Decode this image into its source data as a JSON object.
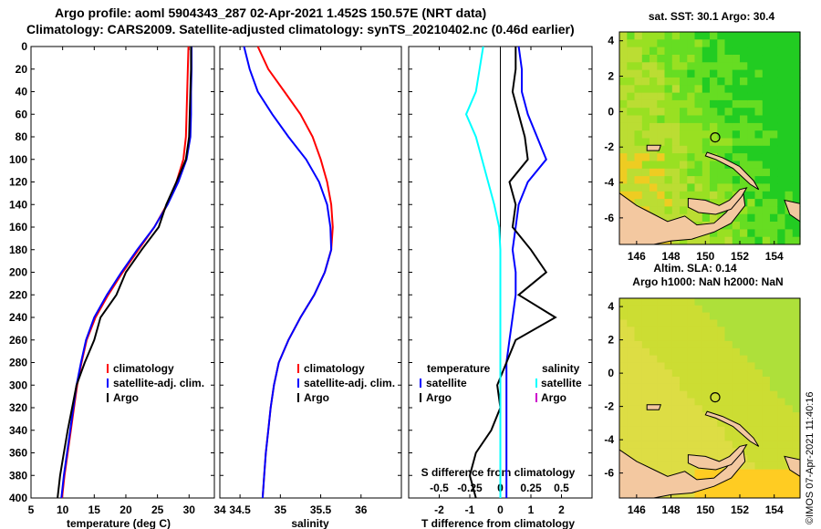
{
  "titles": {
    "line1": "Argo profile: aoml 5904343_287 02-Apr-2021 1.452S 150.57E (NRT data)",
    "line2": "Climatology: CARS2009. Satellite-adjusted climatology: synTS_20210402.nc (0.46d earlier)"
  },
  "colors": {
    "climatology": "#ff0000",
    "satellite": "#0000ff",
    "argo": "#000000",
    "sat_salinity": "#00ffff",
    "argo_salinity": "#cc00cc"
  },
  "chart_data": [
    {
      "name": "temperature-panel",
      "type": "line",
      "xlabel": "temperature (deg C)",
      "ylabel": "",
      "xlim": [
        5,
        34
      ],
      "ylim": [
        400,
        0
      ],
      "xticks": [
        "5",
        "10",
        "15",
        "20",
        "25",
        "30"
      ],
      "yticks": [
        "0",
        "20",
        "40",
        "60",
        "80",
        "100",
        "120",
        "140",
        "160",
        "180",
        "200",
        "220",
        "240",
        "260",
        "280",
        "300",
        "320",
        "340",
        "360",
        "380",
        "400"
      ],
      "legend": [
        "climatology",
        "satellite-adj. clim.",
        "Argo"
      ],
      "series": [
        {
          "name": "climatology",
          "color": "#ff0000",
          "depth": [
            0,
            20,
            40,
            60,
            80,
            100,
            120,
            140,
            160,
            180,
            200,
            220,
            240,
            260,
            280,
            300,
            320,
            340,
            360,
            380,
            400
          ],
          "values": [
            29.9,
            29.8,
            29.7,
            29.6,
            29.5,
            29.1,
            28.0,
            26.5,
            24.5,
            22.0,
            19.5,
            17.2,
            15.2,
            13.8,
            13.0,
            12.3,
            11.8,
            11.3,
            10.8,
            10.3,
            9.9
          ]
        },
        {
          "name": "satellite-adj. clim.",
          "color": "#0000ff",
          "depth": [
            0,
            20,
            40,
            60,
            80,
            100,
            120,
            140,
            160,
            180,
            200,
            220,
            240,
            260,
            280,
            300,
            320,
            340,
            360,
            380,
            400
          ],
          "values": [
            30.4,
            30.4,
            30.3,
            30.3,
            30.2,
            29.6,
            28.3,
            26.6,
            24.5,
            21.8,
            19.3,
            17.0,
            15.0,
            13.7,
            12.9,
            12.2,
            11.7,
            11.2,
            10.7,
            10.2,
            9.8
          ]
        },
        {
          "name": "Argo",
          "color": "#000000",
          "depth": [
            0,
            20,
            40,
            60,
            80,
            100,
            120,
            140,
            160,
            180,
            200,
            220,
            240,
            260,
            280,
            300,
            320,
            340,
            360,
            380,
            400
          ],
          "values": [
            30.3,
            30.3,
            30.2,
            30.1,
            30.0,
            29.5,
            28.0,
            26.4,
            25.2,
            22.5,
            20.0,
            18.5,
            16.0,
            15.0,
            13.5,
            12.2,
            11.5,
            10.8,
            10.2,
            9.6,
            9.2
          ]
        }
      ]
    },
    {
      "name": "salinity-panel",
      "type": "line",
      "xlabel": "salinity",
      "xlim": [
        34.25,
        36.5
      ],
      "ylim": [
        400,
        0
      ],
      "xticks": [
        "34.5",
        "35",
        "35.5",
        "36"
      ],
      "legend": [
        "climatology",
        "satellite-adj. clim.",
        "Argo"
      ],
      "series": [
        {
          "name": "climatology",
          "color": "#ff0000",
          "depth": [
            0,
            20,
            40,
            60,
            80,
            100,
            120,
            140,
            160,
            180,
            200,
            220,
            240,
            260,
            280,
            300,
            320,
            340,
            360,
            380,
            400
          ],
          "values": [
            34.72,
            34.85,
            35.05,
            35.25,
            35.4,
            35.5,
            35.58,
            35.63,
            35.65,
            35.63,
            35.55,
            35.42,
            35.25,
            35.1,
            34.98,
            34.92,
            34.88,
            34.85,
            34.82,
            34.8,
            34.78
          ]
        },
        {
          "name": "satellite-adj. clim.",
          "color": "#0000ff",
          "depth": [
            0,
            20,
            40,
            60,
            80,
            100,
            120,
            140,
            160,
            180,
            200,
            220,
            240,
            260,
            280,
            300,
            320,
            340,
            360,
            380,
            400
          ],
          "values": [
            34.55,
            34.62,
            34.72,
            34.9,
            35.1,
            35.32,
            35.48,
            35.58,
            35.62,
            35.63,
            35.55,
            35.42,
            35.25,
            35.1,
            34.98,
            34.92,
            34.88,
            34.85,
            34.82,
            34.8,
            34.78
          ]
        }
      ]
    },
    {
      "name": "difference-panel",
      "type": "line",
      "xlabel": "T difference from climatology",
      "xlim": [
        -3,
        3
      ],
      "ylim": [
        400,
        0
      ],
      "xticks": [
        "-2",
        "-1",
        "0",
        "1",
        "2"
      ],
      "top_axis_label": "S difference from climatology",
      "top_axis_ticks": [
        "-0.5",
        "-0.25",
        "0",
        "0.25",
        "0.5"
      ],
      "legend": {
        "temperature_header": "temperature",
        "salinity_header": "salinity",
        "temperature_items": [
          "satellite",
          "Argo"
        ],
        "salinity_items": [
          "satellite",
          "Argo"
        ]
      },
      "series": [
        {
          "name": "T satellite",
          "color": "#0000ff",
          "depth": [
            0,
            20,
            40,
            60,
            80,
            100,
            120,
            140,
            160,
            180,
            200,
            220,
            240,
            260,
            280,
            300,
            320,
            340,
            360,
            380,
            400
          ],
          "values": [
            0.6,
            0.7,
            0.7,
            0.9,
            1.2,
            1.5,
            0.9,
            0.6,
            0.5,
            0.4,
            0.5,
            0.5,
            0.4,
            0.3,
            0.2,
            0.2,
            0.2,
            0.2,
            0.2,
            0.2,
            0.2
          ]
        },
        {
          "name": "T Argo",
          "color": "#000000",
          "depth": [
            0,
            20,
            40,
            60,
            80,
            100,
            120,
            140,
            160,
            180,
            200,
            220,
            240,
            260,
            280,
            300,
            320,
            340,
            360,
            380,
            400
          ],
          "values": [
            0.5,
            0.5,
            0.4,
            0.6,
            0.8,
            0.9,
            0.3,
            0.5,
            0.4,
            1.0,
            1.5,
            0.6,
            1.8,
            0.5,
            0.2,
            -0.1,
            0.0,
            -0.3,
            -0.8,
            -1.0,
            -0.8
          ]
        },
        {
          "name": "S satellite",
          "color": "#00ffff",
          "depth": [
            0,
            20,
            40,
            60,
            80,
            100,
            120,
            140,
            160,
            180,
            200,
            220,
            240,
            260,
            280,
            300,
            320,
            340,
            360,
            380,
            400
          ],
          "values": [
            -0.14,
            -0.17,
            -0.2,
            -0.28,
            -0.2,
            -0.15,
            -0.1,
            -0.05,
            -0.01,
            0.0,
            0.0,
            0.0,
            0.0,
            0.0,
            0.0,
            0.0,
            0.0,
            0.0,
            0.0,
            0.0,
            0.0
          ]
        }
      ]
    },
    {
      "name": "sst-map",
      "type": "heatmap",
      "title": "sat. SST: 30.1 Argo: 30.4",
      "xticks": [
        "146",
        "148",
        "150",
        "152",
        "154"
      ],
      "yticks": [
        "4",
        "2",
        "0",
        "-2",
        "-4",
        "-6"
      ],
      "xlim": [
        145,
        155.5
      ],
      "ylim": [
        -7.5,
        4.5
      ],
      "marker": {
        "lon": 150.57,
        "lat": -1.452
      }
    },
    {
      "name": "sla-map",
      "type": "heatmap",
      "title_line1": "Altim. SLA: 0.14",
      "title_line2": "Argo h1000: NaN h2000: NaN",
      "xticks": [
        "146",
        "148",
        "150",
        "152",
        "154"
      ],
      "yticks": [
        "4",
        "2",
        "0",
        "-2",
        "-4",
        "-6"
      ],
      "xlim": [
        145,
        155.5
      ],
      "ylim": [
        -7.5,
        4.5
      ],
      "marker": {
        "lon": 150.57,
        "lat": -1.452
      }
    }
  ],
  "stamp": "©IMOS 07-Apr-2021 11:40:16"
}
